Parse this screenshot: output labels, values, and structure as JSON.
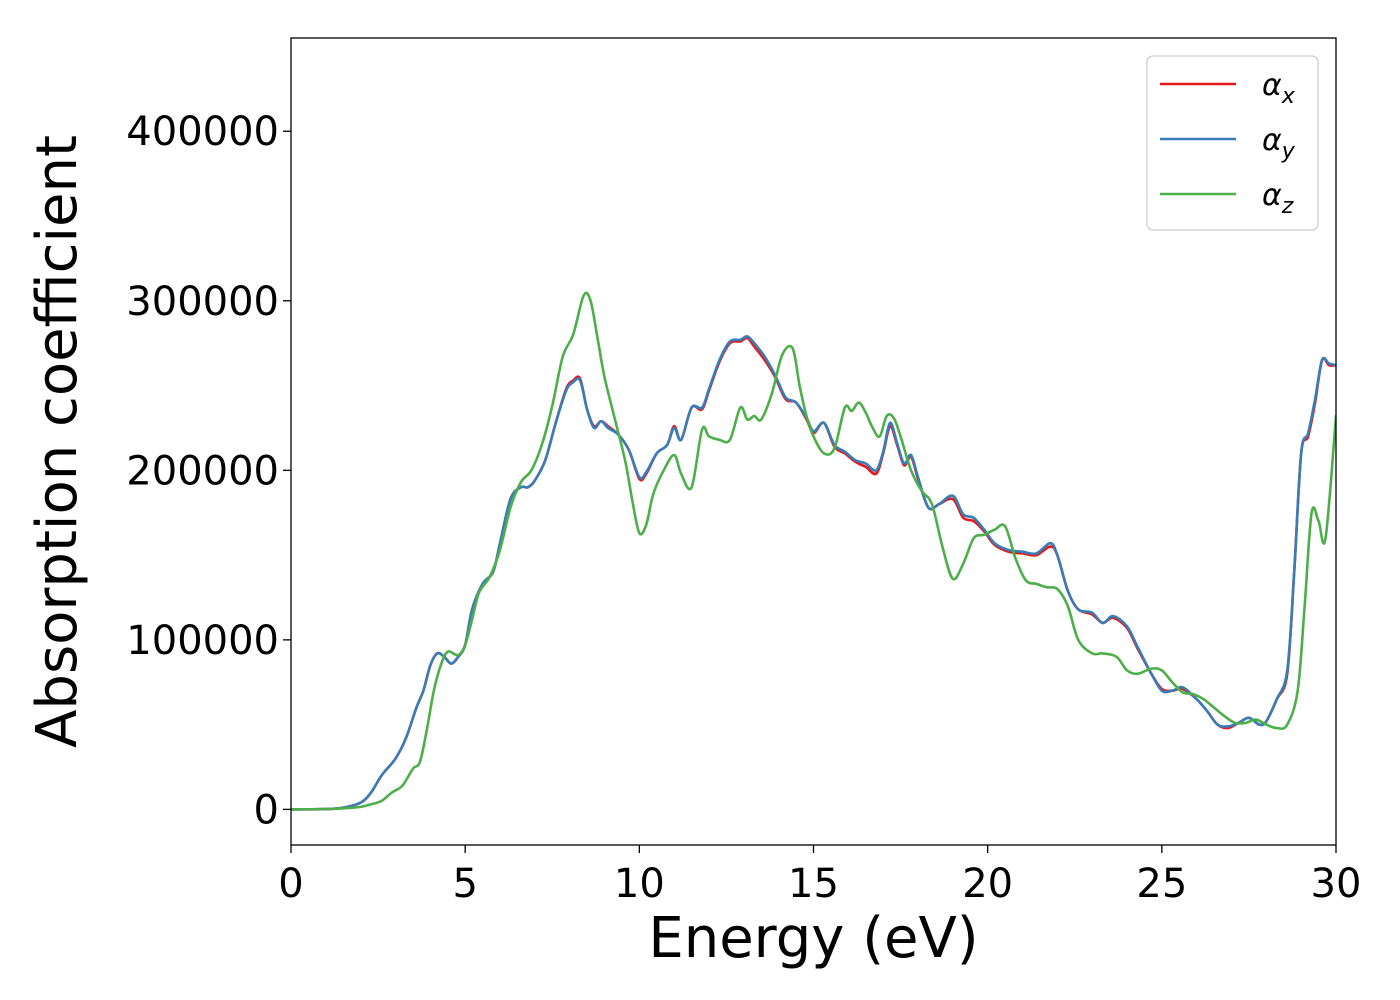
{
  "chart_data": {
    "type": "line",
    "title": "",
    "xlabel": "Energy (eV)",
    "ylabel": "Absorption coefficient",
    "xlim": [
      0,
      30
    ],
    "ylim": [
      -21000,
      455000
    ],
    "xticks": [
      0,
      5,
      10,
      15,
      20,
      25,
      30
    ],
    "xtick_labels": [
      "0",
      "5",
      "10",
      "15",
      "20",
      "25",
      "30"
    ],
    "yticks": [
      0,
      100000,
      200000,
      300000,
      400000
    ],
    "ytick_labels": [
      "0",
      "100000",
      "200000",
      "300000",
      "400000"
    ],
    "grid": false,
    "legend_position": "top-right",
    "series": [
      {
        "name": "αx",
        "legend_base": "α",
        "legend_sub": "x",
        "color": "#e41a1c",
        "x": [
          0,
          1,
          1.5,
          2,
          2.3,
          2.6,
          3,
          3.3,
          3.6,
          3.8,
          4,
          4.2,
          4.4,
          4.6,
          4.8,
          5,
          5.2,
          5.5,
          5.8,
          6,
          6.3,
          6.6,
          6.8,
          7,
          7.3,
          7.6,
          7.9,
          8.1,
          8.3,
          8.5,
          8.7,
          8.9,
          9.1,
          9.4,
          9.7,
          10,
          10.2,
          10.5,
          10.8,
          11,
          11.2,
          11.5,
          11.8,
          12,
          12.3,
          12.6,
          12.9,
          13.1,
          13.3,
          13.6,
          13.9,
          14.2,
          14.5,
          14.8,
          15,
          15.3,
          15.6,
          15.9,
          16.2,
          16.5,
          16.8,
          17,
          17.2,
          17.4,
          17.6,
          17.8,
          18,
          18.3,
          18.6,
          19,
          19.3,
          19.6,
          19.9,
          20.2,
          20.6,
          21,
          21.4,
          21.8,
          22,
          22.3,
          22.6,
          23,
          23.3,
          23.6,
          24,
          24.3,
          24.7,
          25,
          25.3,
          25.6,
          26,
          26.3,
          26.6,
          26.9,
          27.2,
          27.5,
          27.8,
          28,
          28.3,
          28.6,
          28.8,
          29,
          29.2,
          29.4,
          29.6,
          29.8,
          30
        ],
        "y": [
          0,
          200,
          1000,
          4000,
          10000,
          20000,
          30000,
          42000,
          60000,
          70000,
          85000,
          92000,
          90000,
          86000,
          90000,
          97000,
          118000,
          133000,
          140000,
          157000,
          183000,
          190000,
          190000,
          194000,
          206000,
          228000,
          248000,
          253000,
          254000,
          236000,
          226000,
          229000,
          226000,
          221000,
          212000,
          195000,
          198000,
          210000,
          215000,
          226000,
          218000,
          237000,
          236000,
          247000,
          264000,
          275000,
          276000,
          278000,
          273000,
          265000,
          255000,
          242000,
          240000,
          230000,
          222000,
          228000,
          214000,
          210000,
          205000,
          202000,
          198000,
          210000,
          226000,
          215000,
          203000,
          208000,
          195000,
          178000,
          180000,
          183000,
          172000,
          170000,
          164000,
          156000,
          152000,
          151000,
          150000,
          155000,
          150000,
          129000,
          118000,
          115000,
          110000,
          113000,
          107000,
          95000,
          80000,
          71000,
          70000,
          71000,
          65000,
          58000,
          50000,
          48000,
          51000,
          54000,
          50000,
          52000,
          65000,
          80000,
          140000,
          210000,
          220000,
          240000,
          265000,
          262000,
          262000
        ]
      },
      {
        "name": "αy",
        "legend_base": "α",
        "legend_sub": "y",
        "color": "#377eb8",
        "x": [
          0,
          1,
          1.5,
          2,
          2.3,
          2.6,
          3,
          3.3,
          3.6,
          3.8,
          4,
          4.2,
          4.4,
          4.6,
          4.8,
          5,
          5.2,
          5.5,
          5.8,
          6,
          6.3,
          6.6,
          6.8,
          7,
          7.3,
          7.6,
          7.9,
          8.1,
          8.3,
          8.5,
          8.7,
          8.9,
          9.1,
          9.4,
          9.7,
          10,
          10.2,
          10.5,
          10.8,
          11,
          11.2,
          11.5,
          11.8,
          12,
          12.3,
          12.6,
          12.9,
          13.1,
          13.3,
          13.6,
          13.9,
          14.2,
          14.5,
          14.8,
          15,
          15.3,
          15.6,
          15.9,
          16.2,
          16.5,
          16.8,
          17,
          17.2,
          17.4,
          17.6,
          17.8,
          18,
          18.3,
          18.6,
          19,
          19.3,
          19.6,
          19.9,
          20.2,
          20.6,
          21,
          21.4,
          21.8,
          22,
          22.3,
          22.6,
          23,
          23.3,
          23.6,
          24,
          24.3,
          24.7,
          25,
          25.3,
          25.6,
          26,
          26.3,
          26.6,
          26.9,
          27.2,
          27.5,
          27.8,
          28,
          28.3,
          28.6,
          28.8,
          29,
          29.2,
          29.4,
          29.6,
          29.8,
          30
        ],
        "y": [
          0,
          200,
          1000,
          4000,
          10000,
          20000,
          30000,
          42000,
          60000,
          70000,
          85000,
          92000,
          90000,
          86000,
          90000,
          97000,
          118000,
          133000,
          140000,
          157000,
          183000,
          190000,
          190000,
          194000,
          206000,
          228000,
          247000,
          252000,
          253000,
          236000,
          225000,
          229000,
          225000,
          221000,
          212000,
          196000,
          199000,
          210000,
          215000,
          225000,
          218000,
          237000,
          237000,
          248000,
          265000,
          276000,
          277000,
          279000,
          275000,
          267000,
          256000,
          243000,
          240000,
          231000,
          223000,
          228000,
          215000,
          211000,
          206000,
          204000,
          200000,
          211000,
          228000,
          216000,
          204000,
          209000,
          196000,
          178000,
          180000,
          185000,
          174000,
          172000,
          165000,
          157000,
          153000,
          152000,
          151000,
          157000,
          150000,
          129000,
          118000,
          116000,
          110000,
          114000,
          108000,
          96000,
          80000,
          70000,
          70000,
          72000,
          65000,
          58000,
          50000,
          49000,
          51000,
          54000,
          50000,
          52000,
          65000,
          82000,
          140000,
          210000,
          222000,
          242000,
          265000,
          263000,
          262000
        ]
      },
      {
        "name": "αz",
        "legend_base": "α",
        "legend_sub": "z",
        "color": "#4daf4a",
        "x": [
          0,
          1,
          1.5,
          2,
          2.3,
          2.6,
          2.9,
          3.2,
          3.5,
          3.7,
          3.9,
          4.1,
          4.3,
          4.5,
          4.8,
          5,
          5.2,
          5.4,
          5.7,
          6,
          6.3,
          6.6,
          6.9,
          7.2,
          7.5,
          7.8,
          8.1,
          8.4,
          8.6,
          8.8,
          9,
          9.3,
          9.6,
          9.8,
          10,
          10.2,
          10.4,
          10.7,
          11,
          11.2,
          11.5,
          11.8,
          12,
          12.3,
          12.6,
          12.9,
          13.1,
          13.3,
          13.5,
          13.8,
          14.1,
          14.4,
          14.6,
          14.8,
          15,
          15.3,
          15.6,
          15.9,
          16.1,
          16.3,
          16.5,
          16.7,
          16.9,
          17.1,
          17.3,
          17.5,
          17.8,
          18.1,
          18.4,
          18.7,
          19,
          19.3,
          19.6,
          19.9,
          20.2,
          20.5,
          20.8,
          21.1,
          21.4,
          21.7,
          22,
          22.3,
          22.6,
          23,
          23.3,
          23.7,
          24,
          24.3,
          24.7,
          25,
          25.3,
          25.6,
          25.9,
          26.2,
          26.5,
          26.8,
          27.1,
          27.4,
          27.7,
          28,
          28.3,
          28.6,
          28.9,
          29.1,
          29.3,
          29.5,
          29.7,
          30
        ],
        "y": [
          0,
          200,
          600,
          1500,
          3000,
          5000,
          10000,
          14000,
          24000,
          28000,
          47000,
          70000,
          85000,
          93000,
          91000,
          97000,
          112000,
          128000,
          137000,
          153000,
          178000,
          193000,
          200000,
          215000,
          238000,
          267000,
          280000,
          303000,
          300000,
          278000,
          255000,
          230000,
          205000,
          182000,
          163000,
          168000,
          186000,
          200000,
          209000,
          198000,
          190000,
          224000,
          220000,
          218000,
          218000,
          237000,
          230000,
          232000,
          230000,
          245000,
          268000,
          272000,
          250000,
          232000,
          220000,
          210000,
          213000,
          237000,
          235000,
          240000,
          234000,
          225000,
          220000,
          232000,
          231000,
          220000,
          200000,
          188000,
          180000,
          155000,
          136000,
          145000,
          160000,
          162000,
          165000,
          167000,
          148000,
          135000,
          133000,
          131000,
          130000,
          120000,
          100000,
          92000,
          92000,
          90000,
          82000,
          80000,
          83000,
          82000,
          75000,
          69000,
          68000,
          65000,
          60000,
          55000,
          51000,
          51000,
          53000,
          50000,
          48000,
          50000,
          70000,
          120000,
          175000,
          170000,
          160000,
          232000
        ]
      }
    ]
  }
}
